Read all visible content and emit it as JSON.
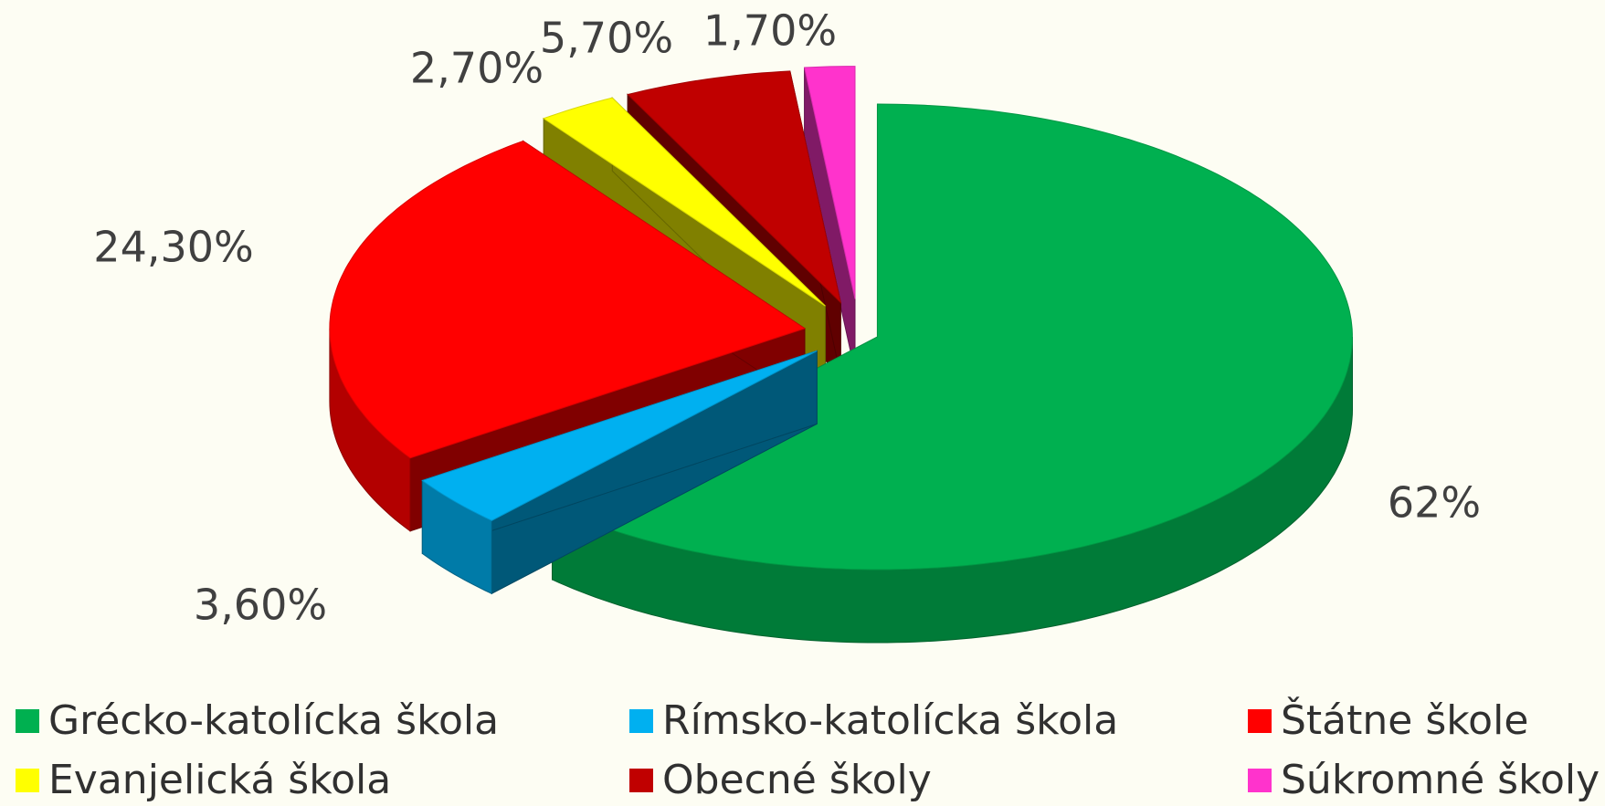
{
  "chart_data": {
    "type": "pie3d",
    "categories": [
      "Grécko-katolícka škola",
      "Rímsko-katolícka škola",
      "Štátne škole",
      "Evanjelická škola",
      "Obecné školy",
      "Súkromné školy"
    ],
    "values": [
      62,
      3.6,
      24.3,
      2.7,
      5.7,
      1.7
    ],
    "value_labels": [
      "62%",
      "3,60%",
      "24,30%",
      "2,70%",
      "5,70%",
      "1,70%"
    ],
    "colors": [
      "#00b050",
      "#00b0f0",
      "#ff0000",
      "#ffff00",
      "#c00000",
      "#ff33cc"
    ],
    "legend": "bottom"
  }
}
